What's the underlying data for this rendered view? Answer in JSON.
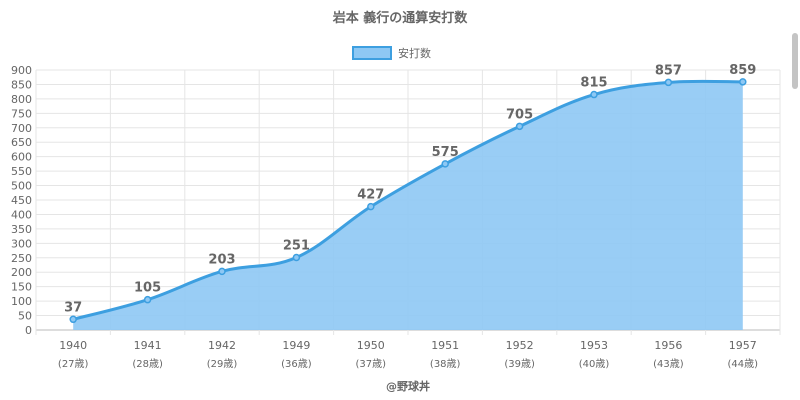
{
  "chart_data": {
    "type": "area",
    "title": "岩本 義行の通算安打数",
    "legend": {
      "label": "安打数",
      "position": "top"
    },
    "categories": [
      "1940",
      "1941",
      "1942",
      "1949",
      "1950",
      "1951",
      "1952",
      "1953",
      "1956",
      "1957"
    ],
    "sublabels": [
      "(27歳)",
      "(28歳)",
      "(29歳)",
      "(36歳)",
      "(37歳)",
      "(38歳)",
      "(39歳)",
      "(40歳)",
      "(43歳)",
      "(44歳)"
    ],
    "series": [
      {
        "name": "安打数",
        "values": [
          37,
          105,
          203,
          251,
          427,
          575,
          705,
          815,
          857,
          859
        ]
      }
    ],
    "ylim": [
      0,
      900
    ],
    "ytick_step": 50,
    "grid": true,
    "colors": {
      "line": "#3d9fe0",
      "fill": "#8ec8f4",
      "grid": "#e5e5e5",
      "axis": "#bbbbbb"
    }
  },
  "credit": "@野球丼"
}
